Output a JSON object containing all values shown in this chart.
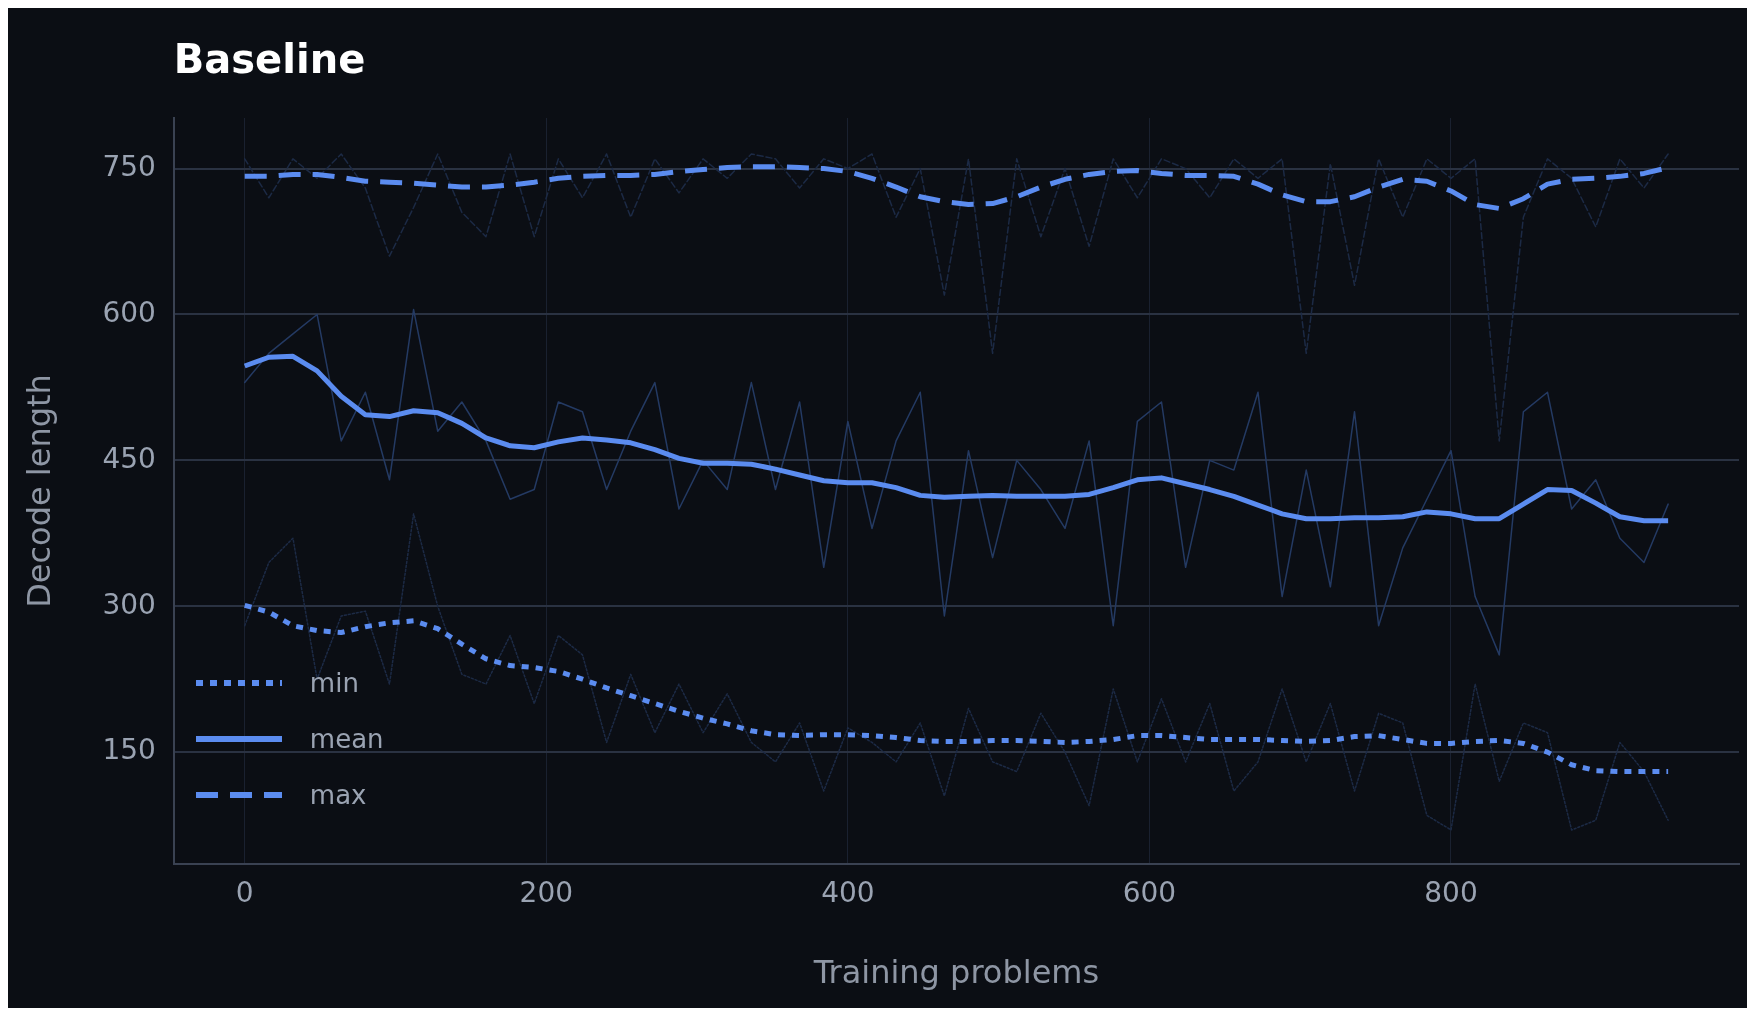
{
  "chart_data": {
    "type": "line",
    "title": "Baseline",
    "xlabel": "Training problems",
    "ylabel": "Decode length",
    "x": [
      0,
      16,
      32,
      48,
      64,
      80,
      96,
      112,
      128,
      144,
      160,
      176,
      192,
      208,
      224,
      240,
      256,
      272,
      288,
      304,
      320,
      336,
      352,
      368,
      384,
      400,
      416,
      432,
      448,
      464,
      480,
      496,
      512,
      528,
      544,
      560,
      576,
      592,
      608,
      624,
      640,
      656,
      672,
      688,
      704,
      720,
      736,
      752,
      768,
      784,
      800,
      816,
      832,
      848,
      864,
      880,
      896,
      912,
      928,
      944
    ],
    "xlim": [
      -47,
      991
    ],
    "xticks": [
      0,
      200,
      400,
      600,
      800
    ],
    "ylim": [
      35,
      802
    ],
    "yticks": [
      150,
      300,
      450,
      600,
      750
    ],
    "grid": true,
    "legend": "bottom left",
    "marker": "none",
    "series": [
      {
        "name": "min",
        "color": "#5b8cf0",
        "line_style": "dotted",
        "values": [
          301,
          294,
          280,
          275,
          273,
          279,
          283,
          285,
          277,
          261,
          246,
          239,
          237,
          233,
          225,
          216,
          208,
          200,
          192,
          185,
          179,
          172,
          168,
          167,
          168,
          168,
          167,
          165,
          162,
          161,
          161,
          162,
          162,
          161,
          160,
          161,
          163,
          167,
          167,
          165,
          163,
          163,
          163,
          162,
          161,
          162,
          166,
          167,
          163,
          159,
          159,
          161,
          162,
          159,
          150,
          137,
          131,
          130,
          130,
          130
        ]
      },
      {
        "name": "mean",
        "color": "#5b8cf0",
        "line_style": "solid",
        "values": [
          547,
          556,
          557,
          542,
          516,
          497,
          495,
          501,
          499,
          488,
          473,
          465,
          463,
          469,
          473,
          471,
          468,
          461,
          452,
          447,
          447,
          446,
          441,
          435,
          429,
          427,
          427,
          422,
          414,
          412,
          413,
          414,
          413,
          413,
          413,
          415,
          422,
          430,
          432,
          426,
          420,
          413,
          404,
          395,
          390,
          390,
          391,
          391,
          392,
          397,
          395,
          390,
          390,
          405,
          420,
          419,
          406,
          392,
          388,
          388
        ]
      },
      {
        "name": "max",
        "color": "#5b8cf0",
        "line_style": "dashed",
        "values": [
          742,
          742,
          744,
          744,
          741,
          737,
          736,
          735,
          733,
          731,
          731,
          733,
          736,
          740,
          742,
          743,
          743,
          744,
          747,
          749,
          751,
          752,
          752,
          751,
          750,
          747,
          740,
          731,
          721,
          716,
          713,
          714,
          721,
          731,
          739,
          744,
          747,
          748,
          745,
          743,
          743,
          742,
          734,
          723,
          716,
          716,
          721,
          731,
          739,
          737,
          727,
          713,
          709,
          719,
          734,
          739,
          740,
          742,
          745,
          751
        ]
      },
      {
        "color": "#1c2a45",
        "line_style": "dotted",
        "values": [
          280,
          345,
          370,
          225,
          290,
          295,
          220,
          395,
          300,
          230,
          220,
          270,
          200,
          270,
          250,
          160,
          230,
          170,
          220,
          170,
          210,
          160,
          140,
          180,
          110,
          175,
          160,
          140,
          180,
          105,
          195,
          140,
          130,
          190,
          150,
          95,
          215,
          140,
          205,
          140,
          200,
          110,
          140,
          215,
          140,
          200,
          110,
          190,
          180,
          85,
          70,
          220,
          120,
          180,
          170,
          70,
          80,
          160,
          130,
          80
        ]
      },
      {
        "color": "#243a63",
        "line_style": "solid",
        "values": [
          530,
          560,
          580,
          600,
          470,
          520,
          430,
          605,
          480,
          510,
          470,
          410,
          420,
          510,
          500,
          420,
          480,
          530,
          400,
          450,
          420,
          530,
          420,
          510,
          340,
          490,
          380,
          470,
          520,
          290,
          460,
          350,
          450,
          420,
          380,
          470,
          280,
          490,
          510,
          340,
          450,
          440,
          520,
          310,
          440,
          320,
          500,
          280,
          360,
          410,
          460,
          310,
          250,
          500,
          520,
          400,
          430,
          370,
          345,
          405
        ]
      },
      {
        "color": "#1c2a45",
        "line_style": "dashed",
        "values": [
          760,
          720,
          760,
          740,
          765,
          730,
          660,
          710,
          765,
          705,
          680,
          765,
          680,
          760,
          720,
          765,
          700,
          760,
          725,
          760,
          740,
          765,
          760,
          730,
          760,
          750,
          765,
          700,
          750,
          620,
          760,
          560,
          760,
          680,
          750,
          670,
          760,
          720,
          760,
          750,
          720,
          760,
          740,
          760,
          560,
          755,
          630,
          760,
          700,
          760,
          740,
          760,
          470,
          700,
          760,
          740,
          690,
          760,
          730,
          765
        ]
      }
    ]
  }
}
